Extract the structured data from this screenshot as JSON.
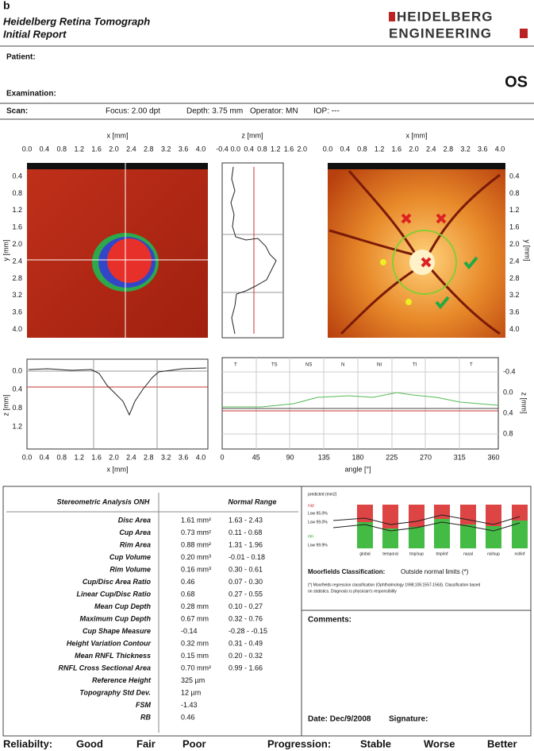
{
  "panel_label": "b",
  "header": {
    "title": [
      "Heidelberg Retina Tomograph",
      "Initial Report"
    ],
    "logo": [
      "HEIDELBERG",
      "ENGINEERING"
    ]
  },
  "patient": "Patient:",
  "examination": "Examination:",
  "eye": "OS",
  "scan": [
    "Scan:",
    "Focus: 2.00 dpt",
    "Depth: 3.75 mm",
    "Operator: MN",
    "IOP: ---"
  ],
  "plots": {
    "topography": {
      "x_label": "x [mm]",
      "x_ticks": [
        "0.0",
        "0.4",
        "0.8",
        "1.2",
        "1.6",
        "2.0",
        "2.4",
        "2.8",
        "3.2",
        "3.6",
        "4.0"
      ],
      "y_label": "y [mm]",
      "y_ticks": [
        "0.4",
        "0.8",
        "1.2",
        "1.6",
        "2.0",
        "2.4",
        "2.8",
        "3.2",
        "3.6",
        "4.0"
      ]
    },
    "vertical_profile": {
      "x_label": "z [mm]",
      "x_ticks": [
        "-0.4",
        "0.0",
        "0.4",
        "0.8",
        "1.2",
        "1.6",
        "2.0"
      ]
    },
    "reflectance": {
      "x_label": "x [mm]",
      "x_ticks": [
        "0.0",
        "0.4",
        "0.8",
        "1.2",
        "1.6",
        "2.0",
        "2.4",
        "2.8",
        "3.2",
        "3.6",
        "4.0"
      ],
      "y_label": "y [mm]",
      "y_ticks": [
        "0.4",
        "0.8",
        "1.2",
        "1.6",
        "2.0",
        "2.4",
        "2.8",
        "3.2",
        "3.6",
        "4.0"
      ]
    },
    "horizontal_profile": {
      "y_label": "z [mm]",
      "y_ticks": [
        "0.0",
        "0.4",
        "0.8",
        "1.2"
      ],
      "x_label": "x [mm]",
      "x_ticks": [
        "0.0",
        "0.4",
        "0.8",
        "1.2",
        "1.6",
        "2.0",
        "2.4",
        "2.8",
        "3.2",
        "3.6",
        "4.0"
      ]
    },
    "contour": {
      "sectors": [
        "T",
        "TS",
        "NS",
        "N",
        "NI",
        "TI",
        "T"
      ],
      "x_label": "angle [°]",
      "x_ticks": [
        "0",
        "45",
        "90",
        "135",
        "180",
        "225",
        "270",
        "315",
        "360"
      ],
      "y_label": "z [mm]",
      "y_ticks": [
        "-0.4",
        "0.0",
        "0.4",
        "0.8"
      ]
    }
  },
  "stereometric": {
    "header": [
      "Stereometric Analysis ONH",
      "Normal Range"
    ],
    "rows": [
      [
        "Disc Area",
        "1.61 mm²",
        "1.63 - 2.43"
      ],
      [
        "Cup Area",
        "0.73 mm²",
        "0.11 - 0.68"
      ],
      [
        "Rim Area",
        "0.88 mm²",
        "1.31 - 1.96"
      ],
      [
        "Cup Volume",
        "0.20 mm³",
        "-0.01 - 0.18"
      ],
      [
        "Rim Volume",
        "0.16 mm³",
        "0.30 - 0.61"
      ],
      [
        "Cup/Disc Area Ratio",
        "0.46",
        "0.07 - 0.30"
      ],
      [
        "Linear Cup/Disc Ratio",
        "0.68",
        "0.27 - 0.55"
      ],
      [
        "Mean Cup Depth",
        "0.28 mm",
        "0.10 - 0.27"
      ],
      [
        "Maximum Cup Depth",
        "0.67 mm",
        "0.32 - 0.76"
      ],
      [
        "Cup Shape Measure",
        "-0.14",
        "-0.28 - -0.15"
      ],
      [
        "Height Variation Contour",
        "0.32 mm",
        "0.31 - 0.49"
      ],
      [
        "Mean RNFL Thickness",
        "0.15 mm",
        "0.20 - 0.32"
      ],
      [
        "RNFL Cross Sectional Area",
        "0.70 mm²",
        "0.99 - 1.66"
      ],
      [
        "Reference Height",
        "325 µm"
      ],
      [
        "Topography Std Dev.",
        "12 µm"
      ],
      [
        "FSM",
        "-1.43"
      ],
      [
        "RB",
        "0.46"
      ]
    ]
  },
  "moorfields": {
    "legend": [
      "predicted (mm2)",
      "cup",
      "Low 95.0%",
      "Low 99.0%",
      "rim",
      "Low 99.9%"
    ],
    "sectors": [
      "global",
      "temporal",
      "tmp/sup",
      "tmp/inf",
      "nasal",
      "nsl/sup",
      "nsl/inf"
    ],
    "classification": [
      "Moorfields Classification:",
      "Outside normal limits (*)"
    ],
    "footnote": [
      "(*) Moorfields regression classification (Ophthalmology 1998;105:1557-1563). Classification based",
      "on statistics. Diagnosis is physician's responsibility"
    ]
  },
  "comments": "Comments:",
  "date": "Date: Dec/9/2008",
  "signature": "Signature:",
  "footer": {
    "reliability": [
      "Reliabilty:",
      "Good",
      "Fair",
      "Poor"
    ],
    "progression": [
      "Progression:",
      "Stable",
      "Worse",
      "Better"
    ]
  }
}
